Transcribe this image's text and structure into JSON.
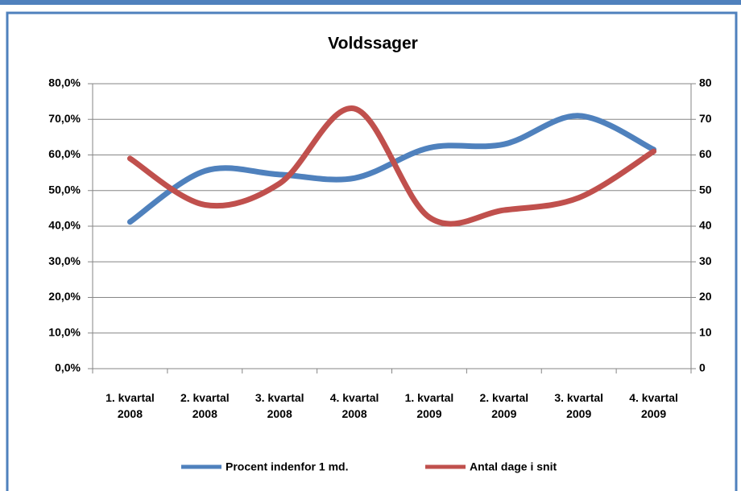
{
  "chart_data": {
    "type": "line",
    "title": "Voldssager",
    "categories": [
      "1. kvartal 2008",
      "2. kvartal 2008",
      "3. kvartal 2008",
      "4. kvartal 2008",
      "1. kvartal 2009",
      "2. kvartal 2009",
      "3. kvartal 2009",
      "4. kvartal 2009"
    ],
    "series": [
      {
        "name": "Procent indenfor 1 md.",
        "color": "#4f81bd",
        "values": [
          41.2,
          55.5,
          54.5,
          53.5,
          62,
          63,
          71,
          61.5
        ]
      },
      {
        "name": "Antal dage i snit",
        "color": "#c0504d",
        "axis": "y2",
        "values": [
          59,
          46,
          52,
          73,
          42.5,
          44.5,
          48,
          61
        ]
      }
    ],
    "ylim": [
      0,
      80
    ],
    "yticks": [
      {
        "value": 0,
        "label": "0,0%"
      },
      {
        "value": 10,
        "label": "10,0%"
      },
      {
        "value": 20,
        "label": "20,0%"
      },
      {
        "value": 30,
        "label": "30,0%"
      },
      {
        "value": 40,
        "label": "40,0%"
      },
      {
        "value": 50,
        "label": "50,0%"
      },
      {
        "value": 60,
        "label": "60,0%"
      },
      {
        "value": 70,
        "label": "70,0%"
      },
      {
        "value": 80,
        "label": "80,0%"
      }
    ],
    "y2lim": [
      0,
      80
    ],
    "y2ticks": [
      0,
      10,
      20,
      30,
      40,
      50,
      60,
      70,
      80
    ],
    "grid": true,
    "legend": "bottom"
  }
}
